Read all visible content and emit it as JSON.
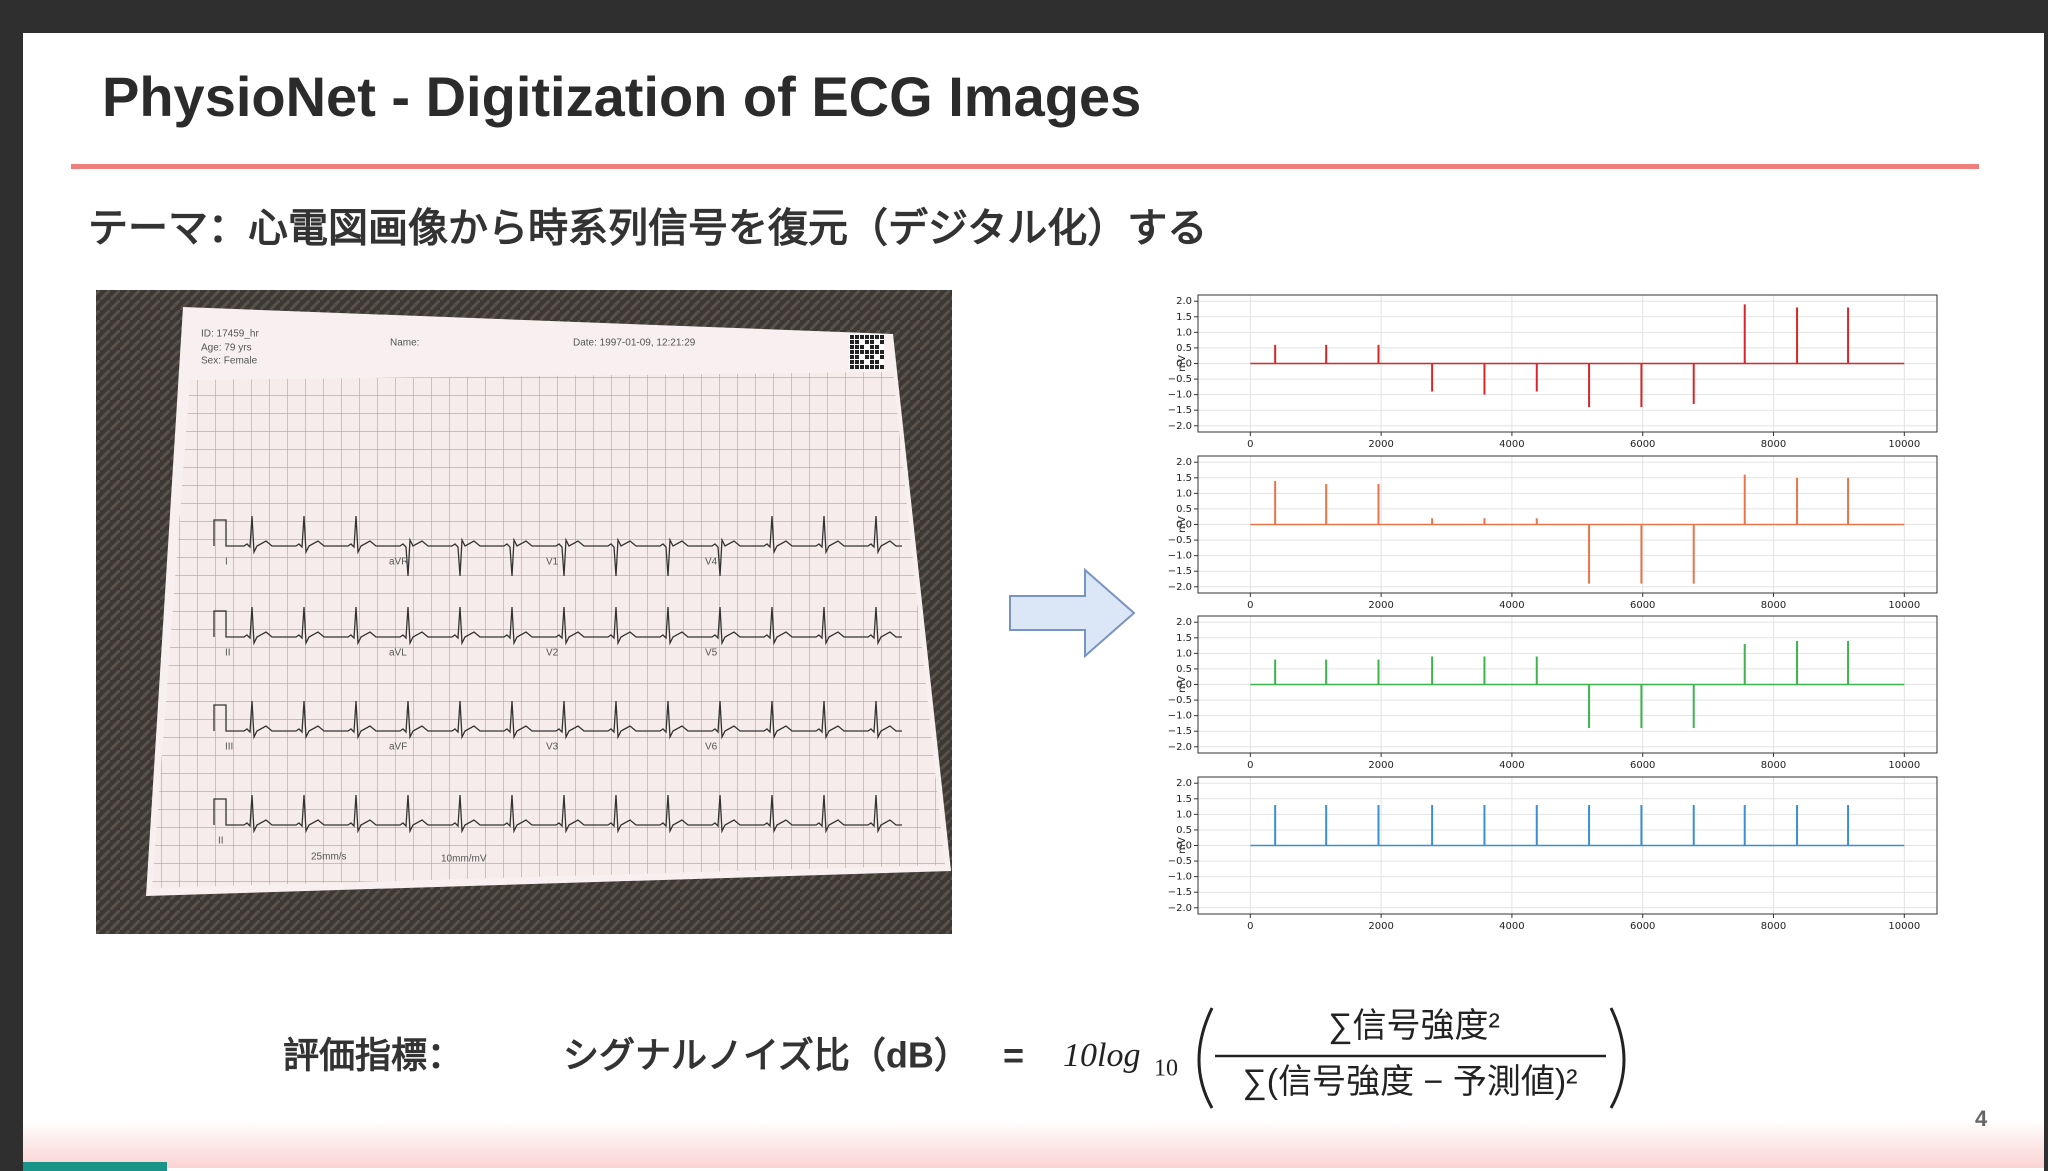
{
  "slide": {
    "title": "PhysioNet - Digitization of ECG Images",
    "subtitle": "テーマ：心電図画像から時系列信号を復元（デジタル化）する",
    "page_number": "4",
    "photo": {
      "id": "ID: 17459_hr",
      "age": "Age: 79 yrs",
      "sex": "Sex: Female",
      "name": "Name:",
      "date": "Date: 1997-01-09, 12:21:29",
      "leads": [
        [
          "I",
          "aVR",
          "V1",
          "V4"
        ],
        [
          "II",
          "aVL",
          "V2",
          "V5"
        ],
        [
          "III",
          "aVF",
          "V3",
          "V6"
        ],
        [
          "II"
        ]
      ],
      "speed": "25mm/s",
      "gain": "10mm/mV"
    },
    "formula": {
      "label": "評価指標：",
      "lhs": "シグナルノイズ比（dB）",
      "equals": "=",
      "coefficient": "10log",
      "base": "10",
      "numerator": "∑信号強度²",
      "denominator": "∑(信号強度 − 予測値)²"
    }
  },
  "chart_data": [
    {
      "type": "line",
      "ylabel": "mV",
      "color": "#d62728",
      "x": [
        380,
        1160,
        1960,
        2780,
        3580,
        4380,
        5180,
        5980,
        6780,
        7560,
        8360,
        9140
      ],
      "values": [
        0.6,
        0.6,
        0.6,
        -0.9,
        -1.0,
        -0.9,
        -1.4,
        -1.4,
        -1.3,
        1.9,
        1.8,
        1.8
      ],
      "xlim": [
        -800,
        10500
      ],
      "ylim": [
        -2.2,
        2.2
      ],
      "xticks": [
        0,
        2000,
        4000,
        6000,
        8000,
        10000
      ],
      "yticks": [
        {
          "value": 2,
          "label": "2.0"
        },
        {
          "value": 1.5,
          "label": "1.5"
        },
        {
          "value": 1,
          "label": "1.0"
        },
        {
          "value": 0.5,
          "label": "0.5"
        },
        {
          "value": 0,
          "label": "0.0"
        },
        {
          "value": -0.5,
          "label": "−0.5"
        },
        {
          "value": -1,
          "label": "−1.0"
        },
        {
          "value": -1.5,
          "label": "−1.5"
        },
        {
          "value": -2,
          "label": "−2.0"
        }
      ],
      "grid": true
    },
    {
      "type": "line",
      "ylabel": "mV",
      "color": "#e8744a",
      "x": [
        380,
        1160,
        1960,
        2780,
        3580,
        4380,
        5180,
        5980,
        6780,
        7560,
        8360,
        9140
      ],
      "values": [
        1.4,
        1.3,
        1.3,
        0.2,
        0.2,
        0.2,
        -1.9,
        -1.9,
        -1.9,
        1.6,
        1.5,
        1.5
      ],
      "xlim": [
        -800,
        10500
      ],
      "ylim": [
        -2.2,
        2.2
      ],
      "xticks": [
        0,
        2000,
        4000,
        6000,
        8000,
        10000
      ],
      "yticks": [
        {
          "value": 2,
          "label": "2.0"
        },
        {
          "value": 1.5,
          "label": "1.5"
        },
        {
          "value": 1,
          "label": "1.0"
        },
        {
          "value": 0.5,
          "label": "0.5"
        },
        {
          "value": 0,
          "label": "0.0"
        },
        {
          "value": -0.5,
          "label": "−0.5"
        },
        {
          "value": -1,
          "label": "−1.0"
        },
        {
          "value": -1.5,
          "label": "−1.5"
        },
        {
          "value": -2,
          "label": "−2.0"
        }
      ],
      "grid": true
    },
    {
      "type": "line",
      "ylabel": "mV",
      "color": "#3cb44b",
      "x": [
        380,
        1160,
        1960,
        2780,
        3580,
        4380,
        5180,
        5980,
        6780,
        7560,
        8360,
        9140
      ],
      "values": [
        0.8,
        0.8,
        0.8,
        0.9,
        0.9,
        0.9,
        -1.4,
        -1.4,
        -1.4,
        1.3,
        1.4,
        1.4
      ],
      "xlim": [
        -800,
        10500
      ],
      "ylim": [
        -2.2,
        2.2
      ],
      "xticks": [
        0,
        2000,
        4000,
        6000,
        8000,
        10000
      ],
      "yticks": [
        {
          "value": 2,
          "label": "2.0"
        },
        {
          "value": 1.5,
          "label": "1.5"
        },
        {
          "value": 1,
          "label": "1.0"
        },
        {
          "value": 0.5,
          "label": "0.5"
        },
        {
          "value": 0,
          "label": "0.0"
        },
        {
          "value": -0.5,
          "label": "−0.5"
        },
        {
          "value": -1,
          "label": "−1.0"
        },
        {
          "value": -1.5,
          "label": "−1.5"
        },
        {
          "value": -2,
          "label": "−2.0"
        }
      ],
      "grid": true
    },
    {
      "type": "line",
      "ylabel": "mV",
      "color": "#3a8fd0",
      "x": [
        380,
        1160,
        1960,
        2780,
        3580,
        4380,
        5180,
        5980,
        6780,
        7560,
        8360,
        9140
      ],
      "values": [
        1.3,
        1.3,
        1.3,
        1.3,
        1.3,
        1.3,
        1.3,
        1.3,
        1.3,
        1.3,
        1.3,
        1.3
      ],
      "xlim": [
        -800,
        10500
      ],
      "ylim": [
        -2.2,
        2.2
      ],
      "xticks": [
        0,
        2000,
        4000,
        6000,
        8000,
        10000
      ],
      "yticks": [
        {
          "value": 2,
          "label": "2.0"
        },
        {
          "value": 1.5,
          "label": "1.5"
        },
        {
          "value": 1,
          "label": "1.0"
        },
        {
          "value": 0.5,
          "label": "0.5"
        },
        {
          "value": 0,
          "label": "0.0"
        },
        {
          "value": -0.5,
          "label": "−0.5"
        },
        {
          "value": -1,
          "label": "−1.0"
        },
        {
          "value": -1.5,
          "label": "−1.5"
        },
        {
          "value": -2,
          "label": "−2.0"
        }
      ],
      "grid": true
    }
  ]
}
